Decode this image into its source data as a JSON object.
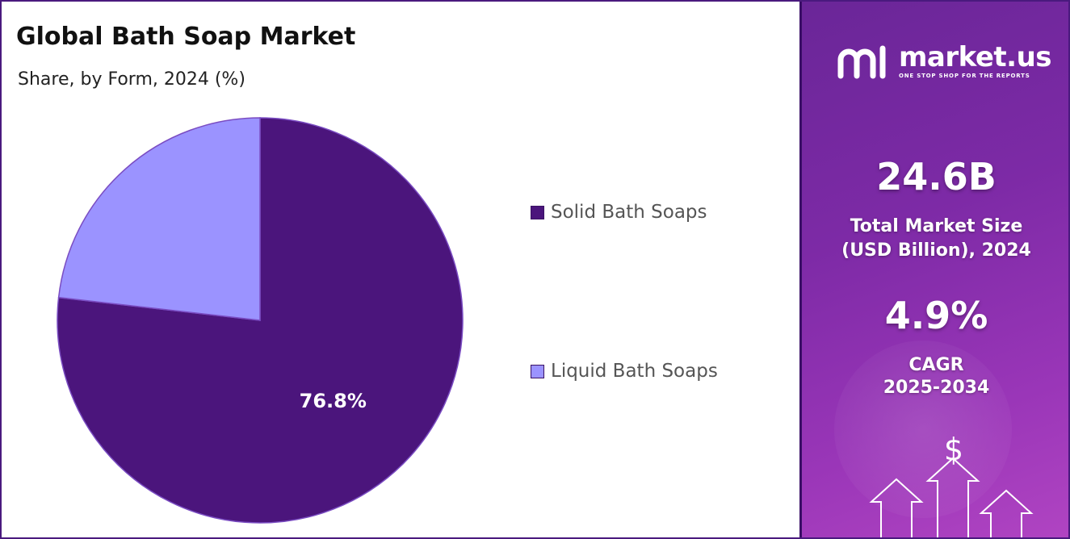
{
  "chart_data": {
    "type": "pie",
    "title": "Global Bath Soap Market",
    "subtitle": "Share, by Form, 2024 (%)",
    "categories": [
      "Solid Bath Soaps",
      "Liquid Bath Soaps"
    ],
    "values": [
      76.8,
      23.2
    ],
    "value_labels": [
      "76.8%",
      ""
    ],
    "colors": [
      "#4b157c",
      "#9b93ff"
    ],
    "legend_position": "right"
  },
  "brand": {
    "name": "market.us",
    "tagline": "ONE STOP SHOP FOR THE REPORTS"
  },
  "stats": {
    "market_size_value": "24.6B",
    "market_size_label_line1": "Total Market Size",
    "market_size_label_line2": "(USD Billion), 2024",
    "cagr_value": "4.9%",
    "cagr_label_line1": "CAGR",
    "cagr_label_line2": "2025-2034"
  },
  "decor": {
    "dollar_symbol": "$"
  }
}
